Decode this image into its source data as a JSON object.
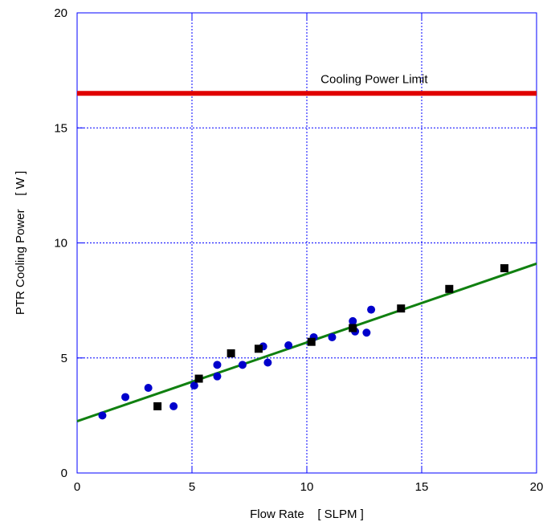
{
  "chart_data": {
    "type": "scatter",
    "title": "",
    "xlabel": "Flow Rate    [ SLPM ]",
    "ylabel": "PTR Cooling Power    [ W ]",
    "xlim": [
      0,
      20
    ],
    "ylim": [
      0,
      20
    ],
    "xticks": [
      0,
      5,
      10,
      15,
      20
    ],
    "yticks": [
      0,
      5,
      10,
      15,
      20
    ],
    "grid": true,
    "legend": "none",
    "series": [
      {
        "marker": "circle",
        "color": "#0000cc",
        "points": [
          [
            1.1,
            2.5
          ],
          [
            2.1,
            3.3
          ],
          [
            3.1,
            3.7
          ],
          [
            4.2,
            2.9
          ],
          [
            5.1,
            3.8
          ],
          [
            6.1,
            4.2
          ],
          [
            6.1,
            4.7
          ],
          [
            7.2,
            4.7
          ],
          [
            8.1,
            5.5
          ],
          [
            8.3,
            4.8
          ],
          [
            9.2,
            5.55
          ],
          [
            10.3,
            5.9
          ],
          [
            11.1,
            5.9
          ],
          [
            12.0,
            6.6
          ],
          [
            12.1,
            6.15
          ],
          [
            12.6,
            6.1
          ],
          [
            12.8,
            7.1
          ]
        ]
      },
      {
        "marker": "square",
        "color": "#000000",
        "points": [
          [
            3.5,
            2.9
          ],
          [
            5.3,
            4.1
          ],
          [
            6.7,
            5.2
          ],
          [
            7.9,
            5.4
          ],
          [
            10.2,
            5.7
          ],
          [
            12.0,
            6.3
          ],
          [
            14.1,
            7.15
          ],
          [
            16.2,
            8.0
          ],
          [
            18.6,
            8.9
          ]
        ]
      },
      {
        "type": "line",
        "color": "#108010",
        "points": [
          [
            0,
            2.25
          ],
          [
            20,
            9.1
          ]
        ]
      },
      {
        "type": "line",
        "color": "#e00000",
        "points": [
          [
            0,
            16.5
          ],
          [
            20,
            16.5
          ]
        ]
      }
    ],
    "annotations": [
      {
        "text": "Cooling Power Limit",
        "x": 10.6,
        "y": 16.95
      }
    ]
  }
}
